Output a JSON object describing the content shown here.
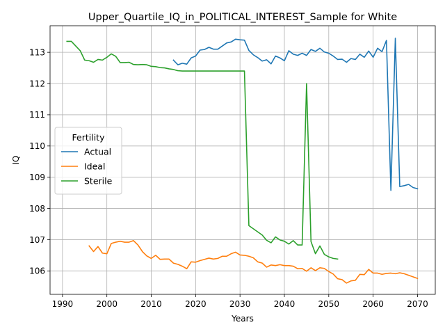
{
  "chart_data": {
    "type": "line",
    "title": "Upper_Quartile_IQ_in_POLITICAL_INTEREST_Sample for White",
    "xlabel": "Years",
    "ylabel": "IQ",
    "xlim": [
      1987.2,
      2074.0
    ],
    "ylim": [
      105.25,
      113.85
    ],
    "xticks": [
      1990,
      2000,
      2010,
      2020,
      2030,
      2040,
      2050,
      2060,
      2070
    ],
    "yticks": [
      106,
      107,
      108,
      109,
      110,
      111,
      112,
      113
    ],
    "grid": true,
    "legend": {
      "title": "Fertility",
      "placement": "center-left"
    },
    "series": [
      {
        "name": "Actual",
        "color": "#1f77b4",
        "x": [
          2015,
          2016,
          2017,
          2018,
          2019,
          2020,
          2021,
          2022,
          2023,
          2024,
          2025,
          2026,
          2027,
          2028,
          2029,
          2030,
          2031,
          2032,
          2033,
          2034,
          2035,
          2036,
          2037,
          2038,
          2039,
          2040,
          2041,
          2042,
          2043,
          2044,
          2045,
          2046,
          2047,
          2048,
          2049,
          2050,
          2051,
          2052,
          2053,
          2054,
          2055,
          2056,
          2057,
          2058,
          2059,
          2060,
          2061,
          2062,
          2063,
          2064,
          2065,
          2066,
          2067,
          2068,
          2069,
          2070
        ],
        "y": [
          112.75,
          112.6,
          112.65,
          112.62,
          112.82,
          112.88,
          113.07,
          113.09,
          113.16,
          113.1,
          113.1,
          113.2,
          113.3,
          113.33,
          113.42,
          113.4,
          113.39,
          113.06,
          112.92,
          112.83,
          112.72,
          112.76,
          112.63,
          112.88,
          112.82,
          112.73,
          113.05,
          112.94,
          112.9,
          112.97,
          112.9,
          113.09,
          113.03,
          113.13,
          113.01,
          112.97,
          112.88,
          112.77,
          112.78,
          112.68,
          112.8,
          112.77,
          112.94,
          112.84,
          113.04,
          112.84,
          113.13,
          113.02,
          113.38,
          108.58,
          113.45,
          108.7,
          108.73,
          108.77,
          108.67,
          108.63
        ]
      },
      {
        "name": "Ideal",
        "color": "#ff7f0e",
        "x": [
          1996,
          1997,
          1998,
          1999,
          2000,
          2001,
          2002,
          2003,
          2004,
          2005,
          2006,
          2007,
          2008,
          2009,
          2010,
          2011,
          2012,
          2013,
          2014,
          2015,
          2016,
          2017,
          2018,
          2019,
          2020,
          2021,
          2022,
          2023,
          2024,
          2025,
          2026,
          2027,
          2028,
          2029,
          2030,
          2031,
          2032,
          2033,
          2034,
          2035,
          2036,
          2037,
          2038,
          2039,
          2040,
          2041,
          2042,
          2043,
          2044,
          2045,
          2046,
          2047,
          2048,
          2049,
          2050,
          2051,
          2052,
          2053,
          2054,
          2055,
          2056,
          2057,
          2058,
          2059,
          2060,
          2061,
          2062,
          2063,
          2064,
          2065,
          2066,
          2067,
          2068,
          2069,
          2070
        ],
        "y": [
          106.8,
          106.62,
          106.78,
          106.57,
          106.55,
          106.88,
          106.92,
          106.95,
          106.92,
          106.92,
          106.97,
          106.83,
          106.62,
          106.48,
          106.4,
          106.5,
          106.37,
          106.38,
          106.38,
          106.25,
          106.21,
          106.15,
          106.07,
          106.29,
          106.28,
          106.33,
          106.37,
          106.41,
          106.38,
          106.4,
          106.47,
          106.47,
          106.55,
          106.6,
          106.51,
          106.5,
          106.47,
          106.42,
          106.29,
          106.25,
          106.12,
          106.19,
          106.17,
          106.2,
          106.17,
          106.17,
          106.15,
          106.07,
          106.08,
          105.99,
          106.1,
          106.01,
          106.1,
          106.08,
          105.98,
          105.9,
          105.75,
          105.72,
          105.61,
          105.68,
          105.7,
          105.89,
          105.88,
          106.05,
          105.93,
          105.93,
          105.89,
          105.92,
          105.93,
          105.91,
          105.94,
          105.91,
          105.86,
          105.81,
          105.76
        ]
      },
      {
        "name": "Sterile",
        "color": "#2ca02c",
        "x": [
          1991,
          1992,
          1993,
          1994,
          1995,
          1996,
          1997,
          1998,
          1999,
          2000,
          2001,
          2002,
          2003,
          2004,
          2005,
          2006,
          2007,
          2008,
          2009,
          2010,
          2011,
          2012,
          2013,
          2014,
          2015,
          2016,
          2017,
          2018,
          2019,
          2020,
          2021,
          2022,
          2023,
          2024,
          2025,
          2026,
          2027,
          2028,
          2029,
          2030,
          2031,
          2032,
          2033,
          2034,
          2035,
          2036,
          2037,
          2038,
          2039,
          2040,
          2041,
          2042,
          2043,
          2044,
          2045,
          2046,
          2047,
          2048,
          2049,
          2050,
          2051,
          2052
        ],
        "y": [
          113.35,
          113.35,
          113.2,
          113.05,
          112.75,
          112.73,
          112.68,
          112.77,
          112.75,
          112.84,
          112.95,
          112.87,
          112.67,
          112.67,
          112.68,
          112.61,
          112.6,
          112.61,
          112.6,
          112.55,
          112.54,
          112.51,
          112.5,
          112.47,
          112.45,
          112.41,
          112.4,
          112.4,
          112.4,
          112.4,
          112.4,
          112.4,
          112.4,
          112.4,
          112.4,
          112.4,
          112.4,
          112.4,
          112.4,
          112.4,
          112.4,
          107.45,
          107.35,
          107.25,
          107.15,
          106.98,
          106.9,
          107.09,
          106.99,
          106.95,
          106.86,
          106.97,
          106.83,
          106.83,
          112.0,
          106.94,
          106.55,
          106.8,
          106.53,
          106.45,
          106.4,
          106.38
        ]
      }
    ]
  }
}
